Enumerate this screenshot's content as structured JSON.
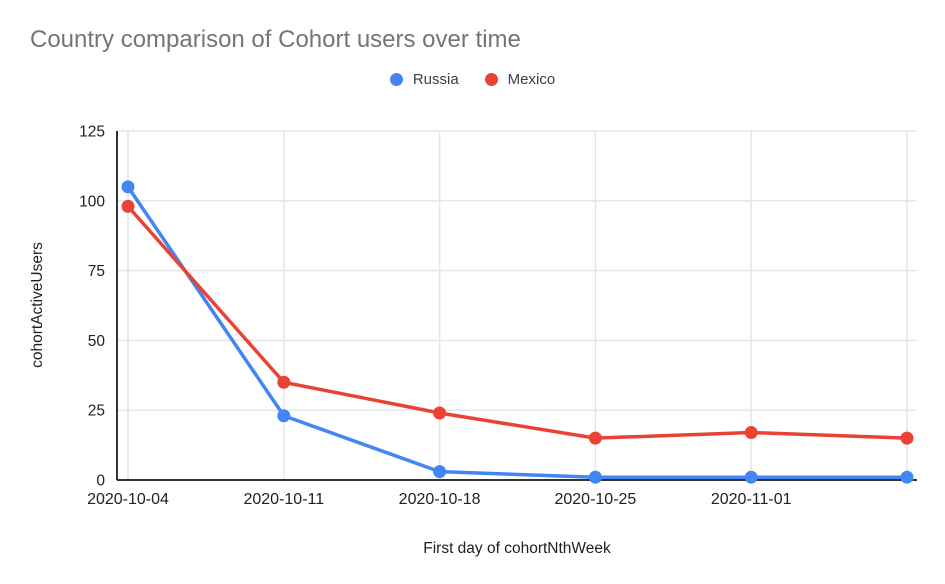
{
  "chart_data": {
    "type": "line",
    "title": "Country comparison of Cohort users over time",
    "xlabel": "First day of cohortNthWeek",
    "ylabel": "cohortActiveUsers",
    "categories": [
      "2020-10-04",
      "2020-10-11",
      "2020-10-18",
      "2020-10-25",
      "2020-11-01",
      ""
    ],
    "series": [
      {
        "name": "Russia",
        "color": "#4285F4",
        "values": [
          105,
          23,
          3,
          1,
          1,
          1
        ]
      },
      {
        "name": "Mexico",
        "color": "#EA4335",
        "values": [
          98,
          35,
          24,
          15,
          17,
          15
        ]
      }
    ],
    "y_ticks": [
      0,
      25,
      50,
      75,
      100,
      125
    ],
    "ylim": [
      0,
      125
    ],
    "grid": true,
    "legend_position": "top"
  },
  "colors": {
    "title_text": "#757575",
    "tick_text": "#202124",
    "legend_text": "#3c4043",
    "gridline": "#e6e6e6",
    "axis_line": "#333333",
    "background": "#ffffff"
  }
}
